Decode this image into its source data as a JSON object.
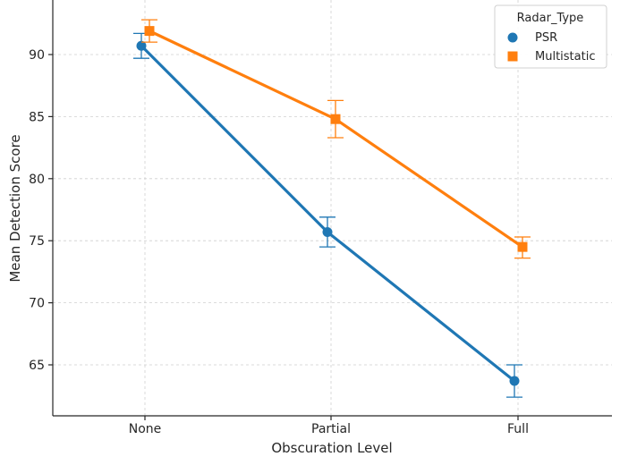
{
  "chart_data": {
    "type": "line",
    "title": "",
    "xlabel": "Obscuration Level",
    "ylabel": "Mean Detection Score",
    "categories": [
      "None",
      "Partial",
      "Full"
    ],
    "y_ticks": [
      65,
      70,
      75,
      80,
      85,
      90
    ],
    "ylim": [
      61.7,
      94.4
    ],
    "grid": true,
    "error_bars": true,
    "legend": {
      "title": "Radar_Type",
      "position": "top-right"
    },
    "series": [
      {
        "name": "PSR",
        "marker": "circle",
        "color": "#1f77b4",
        "values": [
          90.7,
          75.7,
          63.7
        ],
        "err_low": [
          89.7,
          74.5,
          62.4
        ],
        "err_high": [
          91.7,
          76.9,
          65.0
        ]
      },
      {
        "name": "Multistatic",
        "marker": "square",
        "color": "#ff7f0e",
        "values": [
          91.9,
          84.8,
          74.5
        ],
        "err_low": [
          91.0,
          83.3,
          73.6
        ],
        "err_high": [
          92.8,
          86.3,
          75.3
        ]
      }
    ]
  }
}
